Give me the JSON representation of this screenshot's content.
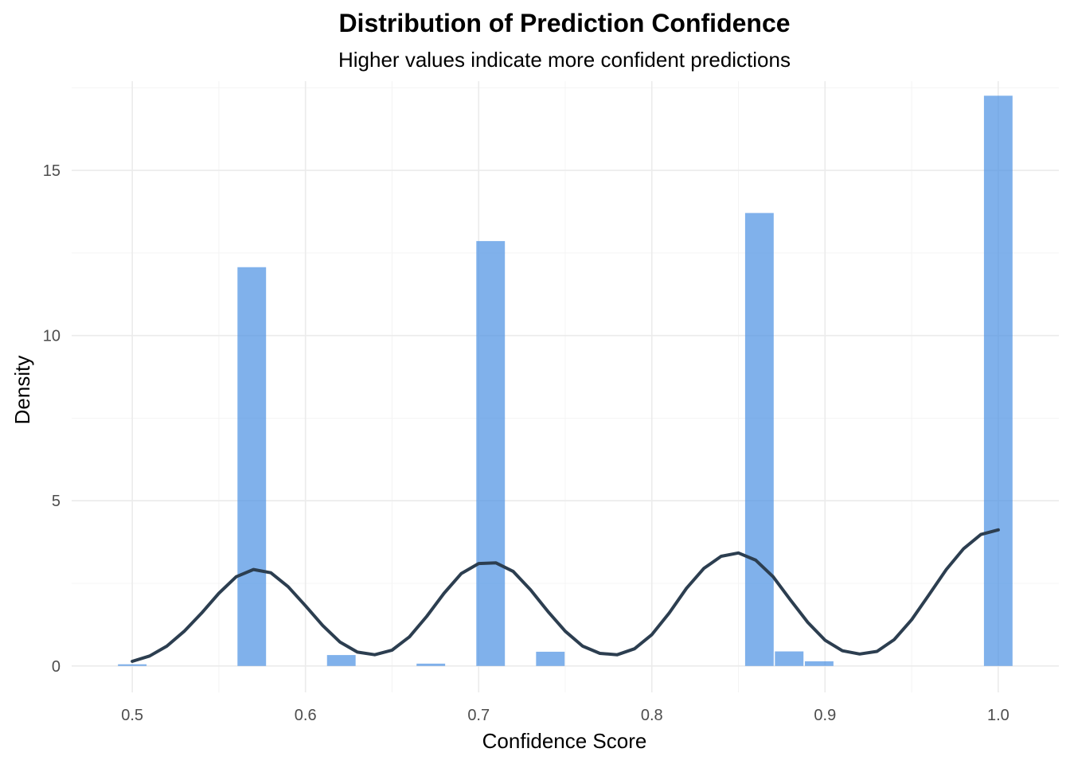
{
  "chart_data": {
    "type": "bar",
    "title": "Distribution of Prediction Confidence",
    "subtitle": "Higher values indicate more confident predictions",
    "xlabel": "Confidence Score",
    "ylabel": "Density",
    "xlim": [
      0.465,
      1.035
    ],
    "ylim": [
      -0.8,
      17.7
    ],
    "x_ticks": [
      0.5,
      0.6,
      0.7,
      0.8,
      0.9,
      1.0
    ],
    "x_tick_labels": [
      "0.5",
      "0.6",
      "0.7",
      "0.8",
      "0.9",
      "1.0"
    ],
    "y_ticks": [
      0,
      5,
      10,
      15
    ],
    "y_tick_labels": [
      "0",
      "5",
      "10",
      "15"
    ],
    "grid": true,
    "legend": "none",
    "bar_color": "#4A90E2",
    "line_color": "#2C3E50",
    "histogram": {
      "bin_width": 0.01724,
      "bins": [
        {
          "x": 0.5,
          "density": 0.05
        },
        {
          "x": 0.569,
          "density": 12.07
        },
        {
          "x": 0.6207,
          "density": 0.33
        },
        {
          "x": 0.6724,
          "density": 0.07
        },
        {
          "x": 0.7069,
          "density": 12.86
        },
        {
          "x": 0.7414,
          "density": 0.43
        },
        {
          "x": 0.8621,
          "density": 13.71
        },
        {
          "x": 0.8793,
          "density": 0.44
        },
        {
          "x": 0.8966,
          "density": 0.14
        },
        {
          "x": 1.0,
          "density": 17.26
        }
      ]
    },
    "density_curve": {
      "x": [
        0.5,
        0.51,
        0.52,
        0.53,
        0.54,
        0.55,
        0.56,
        0.57,
        0.58,
        0.59,
        0.6,
        0.61,
        0.62,
        0.63,
        0.64,
        0.65,
        0.66,
        0.67,
        0.68,
        0.69,
        0.7,
        0.71,
        0.72,
        0.73,
        0.74,
        0.75,
        0.76,
        0.77,
        0.78,
        0.79,
        0.8,
        0.81,
        0.82,
        0.83,
        0.84,
        0.85,
        0.86,
        0.87,
        0.88,
        0.89,
        0.9,
        0.91,
        0.92,
        0.93,
        0.94,
        0.95,
        0.96,
        0.97,
        0.98,
        0.99,
        1.0
      ],
      "y": [
        0.14,
        0.3,
        0.6,
        1.05,
        1.6,
        2.2,
        2.7,
        2.92,
        2.82,
        2.4,
        1.82,
        1.22,
        0.72,
        0.42,
        0.34,
        0.48,
        0.88,
        1.5,
        2.2,
        2.8,
        3.1,
        3.12,
        2.86,
        2.3,
        1.65,
        1.05,
        0.6,
        0.38,
        0.34,
        0.52,
        0.95,
        1.6,
        2.35,
        2.95,
        3.32,
        3.42,
        3.2,
        2.7,
        2.0,
        1.32,
        0.78,
        0.46,
        0.36,
        0.44,
        0.8,
        1.4,
        2.15,
        2.92,
        3.55,
        3.98,
        4.12
      ]
    }
  }
}
